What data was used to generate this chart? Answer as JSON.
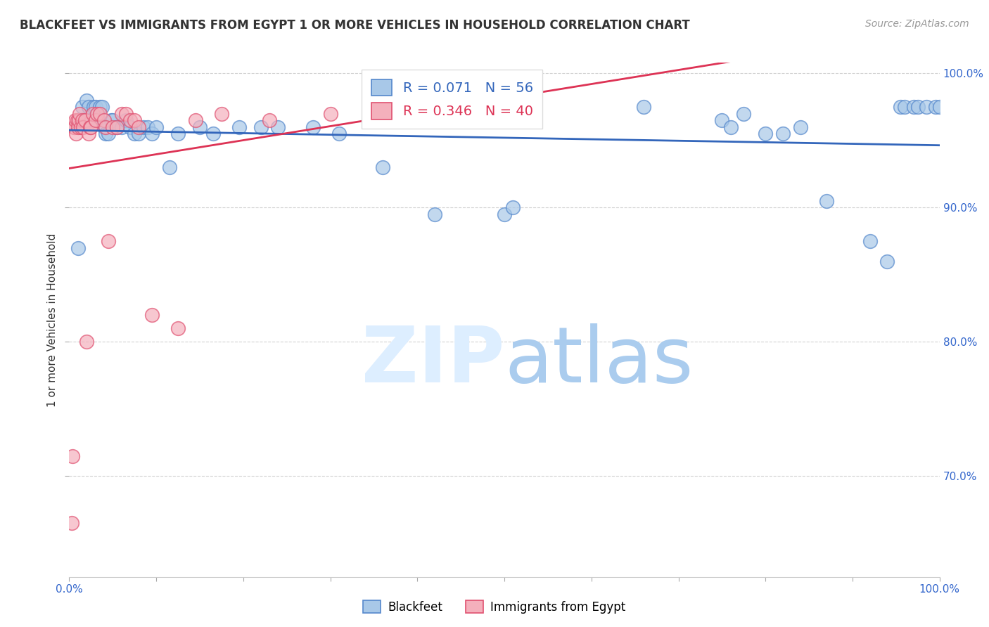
{
  "title": "BLACKFEET VS IMMIGRANTS FROM EGYPT 1 OR MORE VEHICLES IN HOUSEHOLD CORRELATION CHART",
  "source": "Source: ZipAtlas.com",
  "ylabel": "1 or more Vehicles in Household",
  "legend_blue_label": "Blackfeet",
  "legend_pink_label": "Immigrants from Egypt",
  "xlim": [
    0.0,
    1.0
  ],
  "ylim": [
    0.625,
    1.008
  ],
  "yticks": [
    0.7,
    0.8,
    0.9,
    1.0
  ],
  "ytick_labels": [
    "70.0%",
    "80.0%",
    "90.0%",
    "100.0%"
  ],
  "xticks": [
    0.0,
    0.1,
    0.2,
    0.3,
    0.4,
    0.5,
    0.6,
    0.7,
    0.8,
    0.9,
    1.0
  ],
  "xtick_labels": [
    "0.0%",
    "",
    "",
    "",
    "",
    "",
    "",
    "",
    "",
    "",
    "100.0%"
  ],
  "blue_x": [
    0.01,
    0.015,
    0.02,
    0.022,
    0.025,
    0.028,
    0.03,
    0.032,
    0.033,
    0.035,
    0.038,
    0.04,
    0.042,
    0.045,
    0.048,
    0.05,
    0.055,
    0.06,
    0.065,
    0.07,
    0.075,
    0.08,
    0.085,
    0.09,
    0.095,
    0.1,
    0.115,
    0.125,
    0.15,
    0.165,
    0.195,
    0.22,
    0.24,
    0.28,
    0.31,
    0.36,
    0.42,
    0.5,
    0.51,
    0.66,
    0.75,
    0.76,
    0.775,
    0.8,
    0.82,
    0.84,
    0.87,
    0.92,
    0.94,
    0.955,
    0.96,
    0.97,
    0.975,
    0.985,
    0.995,
    1.0
  ],
  "blue_y": [
    0.87,
    0.975,
    0.98,
    0.975,
    0.965,
    0.975,
    0.975,
    0.97,
    0.965,
    0.975,
    0.975,
    0.96,
    0.955,
    0.955,
    0.965,
    0.965,
    0.96,
    0.96,
    0.965,
    0.96,
    0.955,
    0.955,
    0.96,
    0.96,
    0.955,
    0.96,
    0.93,
    0.955,
    0.96,
    0.955,
    0.96,
    0.96,
    0.96,
    0.96,
    0.955,
    0.93,
    0.895,
    0.895,
    0.9,
    0.975,
    0.965,
    0.96,
    0.97,
    0.955,
    0.955,
    0.96,
    0.905,
    0.875,
    0.86,
    0.975,
    0.975,
    0.975,
    0.975,
    0.975,
    0.975,
    0.975
  ],
  "pink_x": [
    0.003,
    0.004,
    0.005,
    0.006,
    0.007,
    0.008,
    0.009,
    0.01,
    0.011,
    0.012,
    0.013,
    0.015,
    0.016,
    0.018,
    0.02,
    0.022,
    0.024,
    0.025,
    0.027,
    0.03,
    0.032,
    0.035,
    0.04,
    0.042,
    0.045,
    0.05,
    0.055,
    0.06,
    0.065,
    0.07,
    0.075,
    0.08,
    0.095,
    0.125,
    0.145,
    0.175,
    0.23,
    0.3,
    0.435,
    0.5
  ],
  "pink_y": [
    0.665,
    0.715,
    0.96,
    0.96,
    0.965,
    0.955,
    0.965,
    0.96,
    0.965,
    0.97,
    0.96,
    0.965,
    0.96,
    0.965,
    0.8,
    0.955,
    0.96,
    0.96,
    0.97,
    0.965,
    0.97,
    0.97,
    0.965,
    0.96,
    0.875,
    0.96,
    0.96,
    0.97,
    0.97,
    0.965,
    0.965,
    0.96,
    0.82,
    0.81,
    0.965,
    0.97,
    0.965,
    0.97,
    0.975,
    0.975
  ],
  "blue_color": "#a8c8e8",
  "pink_color": "#f4b0bc",
  "blue_edge_color": "#5588cc",
  "pink_edge_color": "#e05070",
  "blue_line_color": "#3366bb",
  "pink_line_color": "#dd3355",
  "watermark_zip_color": "#ddeeff",
  "watermark_atlas_color": "#aaccee",
  "grid_color": "#cccccc",
  "background_color": "#ffffff",
  "axis_color": "#3366cc",
  "title_color": "#333333",
  "source_color": "#999999"
}
